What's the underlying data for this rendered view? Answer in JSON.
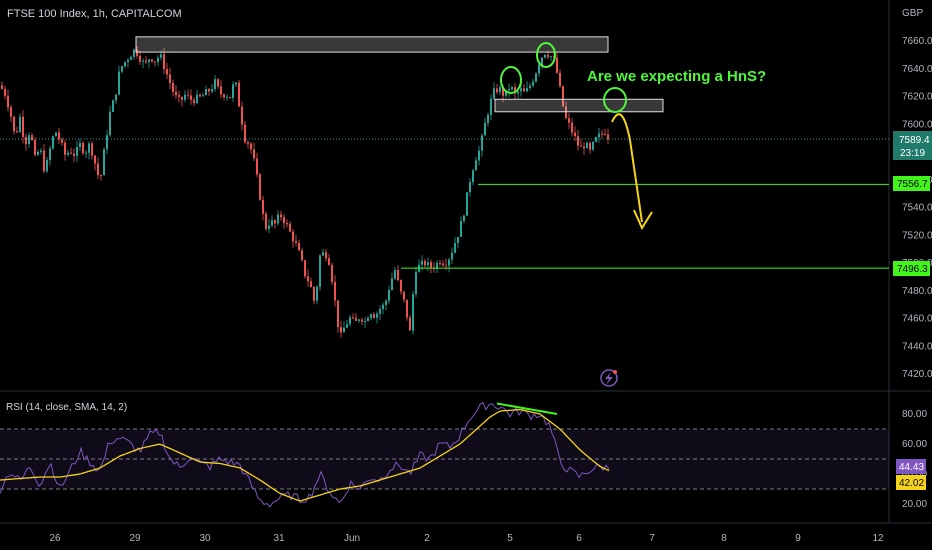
{
  "header": {
    "symbol_title": "FTSE 100 Index, 1h, CAPITALCOM",
    "currency": "GBP"
  },
  "price_panel": {
    "y_ticks": [
      7660,
      7640,
      7620,
      7600,
      7580,
      7560,
      7540,
      7520,
      7500,
      7480,
      7460,
      7440,
      7420
    ],
    "y_tick_labels": [
      "7660.0",
      "7640.0",
      "7620.0",
      "7600.0",
      "7580.0",
      "7560.0",
      "7540.0",
      "7520.0",
      "7500.0",
      "7480.0",
      "7460.0",
      "7440.0",
      "7420.0"
    ],
    "last_price_label": "7589.4",
    "countdown_label": "23:19",
    "support_1_label": "7556.7",
    "support_2_label": "7496.3",
    "annotation_text": "Are we expecting a HnS?",
    "colors": {
      "up": "#26a69a",
      "down": "#ef5350",
      "support": "#41f51a",
      "annotation": "#4ef539",
      "arrow": "#f5d31a",
      "last_price_bg": "#1f7a6a"
    }
  },
  "rsi_panel": {
    "title": "RSI (14, close, SMA, 14, 2)",
    "y_ticks": [
      80,
      60,
      40,
      20
    ],
    "y_tick_labels": [
      "80.00",
      "60.00",
      "40.00",
      "20.00"
    ],
    "rsi_value_label": "44.43",
    "sma_value_label": "42.02",
    "colors": {
      "rsi": "#7e57c2",
      "sma": "#f5d31a",
      "divergence": "#41f51a"
    }
  },
  "x_axis": {
    "labels": [
      "26",
      "29",
      "30",
      "31",
      "Jun",
      "2",
      "5",
      "6",
      "7",
      "8",
      "9",
      "12"
    ]
  },
  "chart_data": {
    "type": "candlestick",
    "title": "FTSE 100 Index, 1h, CAPITALCOM",
    "y_unit": "GBP",
    "ylim": [
      7410,
      7670
    ],
    "close_path": [
      [
        0,
        7628
      ],
      [
        5,
        7622
      ],
      [
        10,
        7610
      ],
      [
        15,
        7590
      ],
      [
        20,
        7605
      ],
      [
        25,
        7586
      ],
      [
        30,
        7596
      ],
      [
        35,
        7575
      ],
      [
        40,
        7583
      ],
      [
        45,
        7565
      ],
      [
        50,
        7582
      ],
      [
        55,
        7596
      ],
      [
        60,
        7588
      ],
      [
        65,
        7578
      ],
      [
        70,
        7581
      ],
      [
        75,
        7578
      ],
      [
        80,
        7585
      ],
      [
        85,
        7580
      ],
      [
        90,
        7586
      ],
      [
        95,
        7572
      ],
      [
        100,
        7558
      ],
      [
        105,
        7585
      ],
      [
        110,
        7608
      ],
      [
        115,
        7620
      ],
      [
        120,
        7640
      ],
      [
        125,
        7645
      ],
      [
        130,
        7650
      ],
      [
        135,
        7654
      ],
      [
        140,
        7648
      ],
      [
        145,
        7642
      ],
      [
        150,
        7649
      ],
      [
        155,
        7646
      ],
      [
        160,
        7650
      ],
      [
        165,
        7640
      ],
      [
        170,
        7630
      ],
      [
        175,
        7620
      ],
      [
        180,
        7616
      ],
      [
        185,
        7621
      ],
      [
        190,
        7618
      ],
      [
        195,
        7618
      ],
      [
        200,
        7619
      ],
      [
        205,
        7622
      ],
      [
        210,
        7625
      ],
      [
        215,
        7630
      ],
      [
        220,
        7622
      ],
      [
        225,
        7622
      ],
      [
        230,
        7620
      ],
      [
        235,
        7632
      ],
      [
        240,
        7610
      ],
      [
        245,
        7590
      ],
      [
        250,
        7585
      ],
      [
        255,
        7570
      ],
      [
        260,
        7548
      ],
      [
        265,
        7525
      ],
      [
        270,
        7530
      ],
      [
        275,
        7528
      ],
      [
        280,
        7535
      ],
      [
        285,
        7530
      ],
      [
        290,
        7522
      ],
      [
        295,
        7515
      ],
      [
        300,
        7505
      ],
      [
        305,
        7492
      ],
      [
        310,
        7485
      ],
      [
        315,
        7470
      ],
      [
        320,
        7505
      ],
      [
        325,
        7508
      ],
      [
        330,
        7500
      ],
      [
        335,
        7472
      ],
      [
        340,
        7445
      ],
      [
        345,
        7455
      ],
      [
        350,
        7460
      ],
      [
        355,
        7456
      ],
      [
        360,
        7462
      ],
      [
        365,
        7458
      ],
      [
        370,
        7466
      ],
      [
        375,
        7462
      ],
      [
        380,
        7467
      ],
      [
        385,
        7470
      ],
      [
        390,
        7485
      ],
      [
        395,
        7495
      ],
      [
        400,
        7480
      ],
      [
        405,
        7470
      ],
      [
        410,
        7450
      ],
      [
        415,
        7496
      ],
      [
        420,
        7498
      ],
      [
        425,
        7500
      ],
      [
        430,
        7497
      ],
      [
        435,
        7498
      ],
      [
        440,
        7502
      ],
      [
        445,
        7500
      ],
      [
        450,
        7505
      ],
      [
        455,
        7515
      ],
      [
        460,
        7525
      ],
      [
        465,
        7540
      ],
      [
        470,
        7560
      ],
      [
        475,
        7575
      ],
      [
        480,
        7582
      ],
      [
        485,
        7600
      ],
      [
        490,
        7615
      ],
      [
        495,
        7625
      ],
      [
        500,
        7625
      ],
      [
        505,
        7620
      ],
      [
        510,
        7628
      ],
      [
        515,
        7621
      ],
      [
        520,
        7625
      ],
      [
        525,
        7622
      ],
      [
        530,
        7628
      ],
      [
        535,
        7636
      ],
      [
        540,
        7647
      ],
      [
        545,
        7652
      ],
      [
        550,
        7650
      ],
      [
        555,
        7645
      ],
      [
        560,
        7625
      ],
      [
        565,
        7605
      ],
      [
        570,
        7598
      ],
      [
        575,
        7590
      ],
      [
        580,
        7582
      ],
      [
        585,
        7586
      ],
      [
        590,
        7580
      ],
      [
        595,
        7588
      ],
      [
        600,
        7592
      ],
      [
        605,
        7595
      ],
      [
        610,
        7589
      ]
    ],
    "resistance_zone_top": {
      "x_from_label": "29",
      "x_to_label": "6",
      "y_high": 7663,
      "y_low": 7652
    },
    "resistance_zone_mid": {
      "y_high": 7618,
      "y_low": 7609
    },
    "support_levels": [
      7556.7,
      7496.3
    ],
    "last_price": 7589.4,
    "rsi": {
      "ylim": [
        10,
        95
      ],
      "overbought": 70,
      "midline": 50,
      "oversold": 30,
      "last_rsi": 44.43,
      "last_sma": 42.02,
      "rsi_path": [
        [
          0,
          30
        ],
        [
          10,
          42
        ],
        [
          20,
          35
        ],
        [
          30,
          45
        ],
        [
          40,
          33
        ],
        [
          50,
          48
        ],
        [
          60,
          30
        ],
        [
          70,
          42
        ],
        [
          80,
          55
        ],
        [
          90,
          48
        ],
        [
          100,
          42
        ],
        [
          110,
          62
        ],
        [
          120,
          64
        ],
        [
          130,
          60
        ],
        [
          140,
          55
        ],
        [
          150,
          66
        ],
        [
          160,
          68
        ],
        [
          170,
          50
        ],
        [
          180,
          44
        ],
        [
          190,
          52
        ],
        [
          200,
          47
        ],
        [
          210,
          45
        ],
        [
          220,
          50
        ],
        [
          230,
          48
        ],
        [
          240,
          46
        ],
        [
          250,
          34
        ],
        [
          260,
          22
        ],
        [
          270,
          20
        ],
        [
          280,
          24
        ],
        [
          290,
          26
        ],
        [
          300,
          23
        ],
        [
          310,
          25
        ],
        [
          320,
          40
        ],
        [
          330,
          28
        ],
        [
          340,
          20
        ],
        [
          350,
          34
        ],
        [
          360,
          30
        ],
        [
          370,
          38
        ],
        [
          380,
          36
        ],
        [
          390,
          44
        ],
        [
          400,
          46
        ],
        [
          410,
          40
        ],
        [
          420,
          52
        ],
        [
          430,
          50
        ],
        [
          440,
          60
        ],
        [
          450,
          58
        ],
        [
          460,
          66
        ],
        [
          470,
          78
        ],
        [
          480,
          84
        ],
        [
          490,
          87
        ],
        [
          500,
          85
        ],
        [
          510,
          80
        ],
        [
          520,
          82
        ],
        [
          530,
          79
        ],
        [
          540,
          80
        ],
        [
          550,
          72
        ],
        [
          560,
          48
        ],
        [
          570,
          42
        ],
        [
          580,
          38
        ],
        [
          590,
          43
        ],
        [
          600,
          45
        ],
        [
          610,
          44
        ]
      ],
      "sma_path": [
        [
          0,
          36
        ],
        [
          20,
          37
        ],
        [
          40,
          38
        ],
        [
          60,
          38
        ],
        [
          80,
          40
        ],
        [
          100,
          44
        ],
        [
          120,
          52
        ],
        [
          140,
          57
        ],
        [
          160,
          60
        ],
        [
          180,
          54
        ],
        [
          200,
          48
        ],
        [
          220,
          47
        ],
        [
          240,
          44
        ],
        [
          260,
          36
        ],
        [
          280,
          27
        ],
        [
          300,
          22
        ],
        [
          320,
          26
        ],
        [
          340,
          30
        ],
        [
          360,
          32
        ],
        [
          380,
          36
        ],
        [
          400,
          40
        ],
        [
          420,
          44
        ],
        [
          440,
          52
        ],
        [
          460,
          60
        ],
        [
          480,
          72
        ],
        [
          490,
          78
        ],
        [
          500,
          82
        ],
        [
          520,
          83
        ],
        [
          540,
          80
        ],
        [
          560,
          70
        ],
        [
          580,
          56
        ],
        [
          600,
          45
        ],
        [
          610,
          42
        ]
      ],
      "divergence_line": {
        "from": [
          497,
          87
        ],
        "to": [
          557,
          80
        ]
      }
    }
  }
}
